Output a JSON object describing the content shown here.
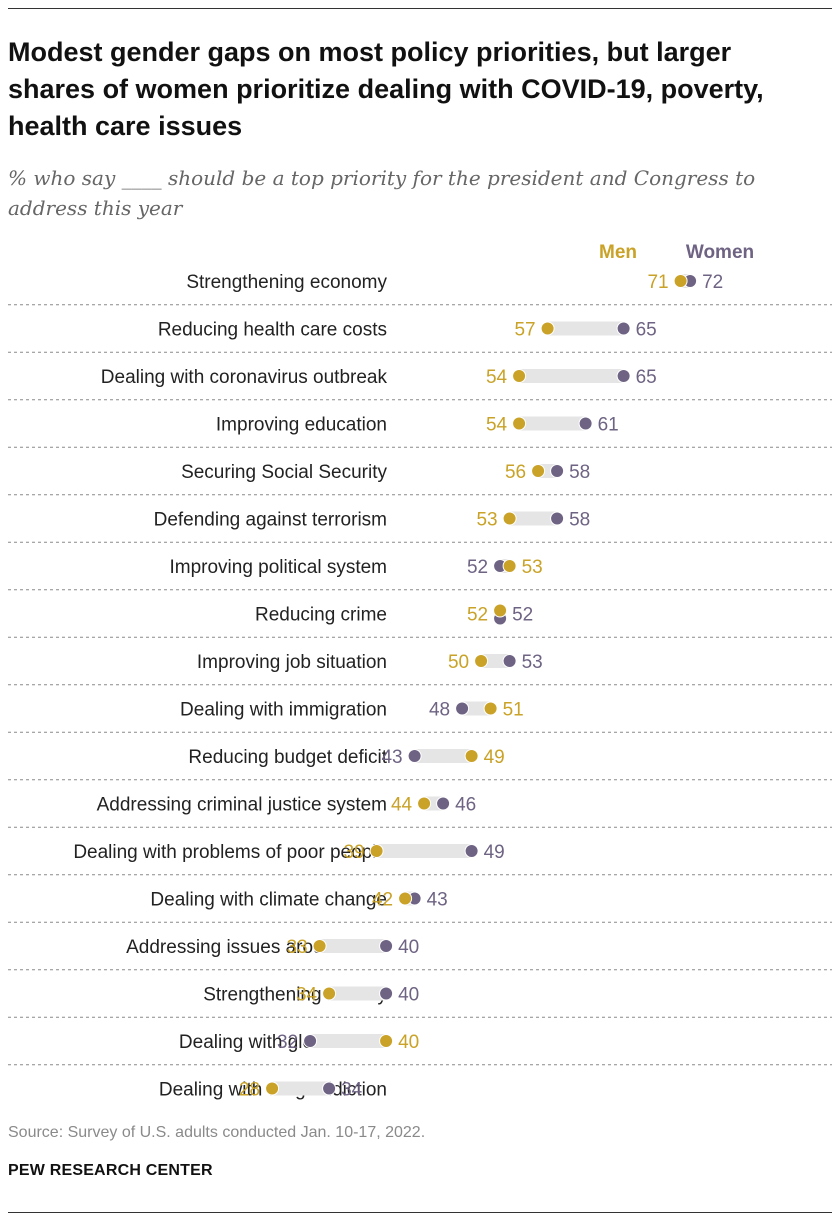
{
  "title": "Modest gender gaps on most policy priorities, but larger shares of women prioritize dealing with COVID-19, poverty, health care issues",
  "subtitle": "% who say ____ should be a top priority for the president and Congress to address this year",
  "source": "Source: Survey of U.S. adults conducted Jan. 10-17, 2022.",
  "org": "PEW RESEARCH CENTER",
  "colors": {
    "men": "#c9a227",
    "women": "#6e6383",
    "connector": "#e5e5e5",
    "divider": "#8a8a8a"
  },
  "chart_data": {
    "type": "dot",
    "title": "Modest gender gaps on most policy priorities, but larger shares of women prioritize dealing with COVID-19, poverty, health care issues",
    "legend": [
      "Men",
      "Women"
    ],
    "legend_position": "top-right",
    "unit": "%",
    "categories": [
      "Strengthening economy",
      "Reducing health care costs",
      "Dealing with coronavirus outbreak",
      "Improving education",
      "Securing Social Security",
      "Defending against terrorism",
      "Improving political system",
      "Reducing crime",
      "Improving job situation",
      "Dealing with immigration",
      "Reducing budget deficit",
      "Addressing criminal justice system",
      "Dealing with problems of poor people",
      "Dealing with climate change",
      "Addressing issues around race",
      "Strengthening military",
      "Dealing with global trade",
      "Dealing with drug addiction"
    ],
    "series": [
      {
        "name": "Men",
        "values": [
          71,
          57,
          54,
          54,
          56,
          53,
          53,
          52,
          50,
          51,
          49,
          44,
          39,
          42,
          33,
          34,
          40,
          28
        ]
      },
      {
        "name": "Women",
        "values": [
          72,
          65,
          65,
          61,
          58,
          58,
          52,
          52,
          53,
          48,
          43,
          46,
          49,
          43,
          40,
          40,
          32,
          34
        ]
      }
    ]
  }
}
